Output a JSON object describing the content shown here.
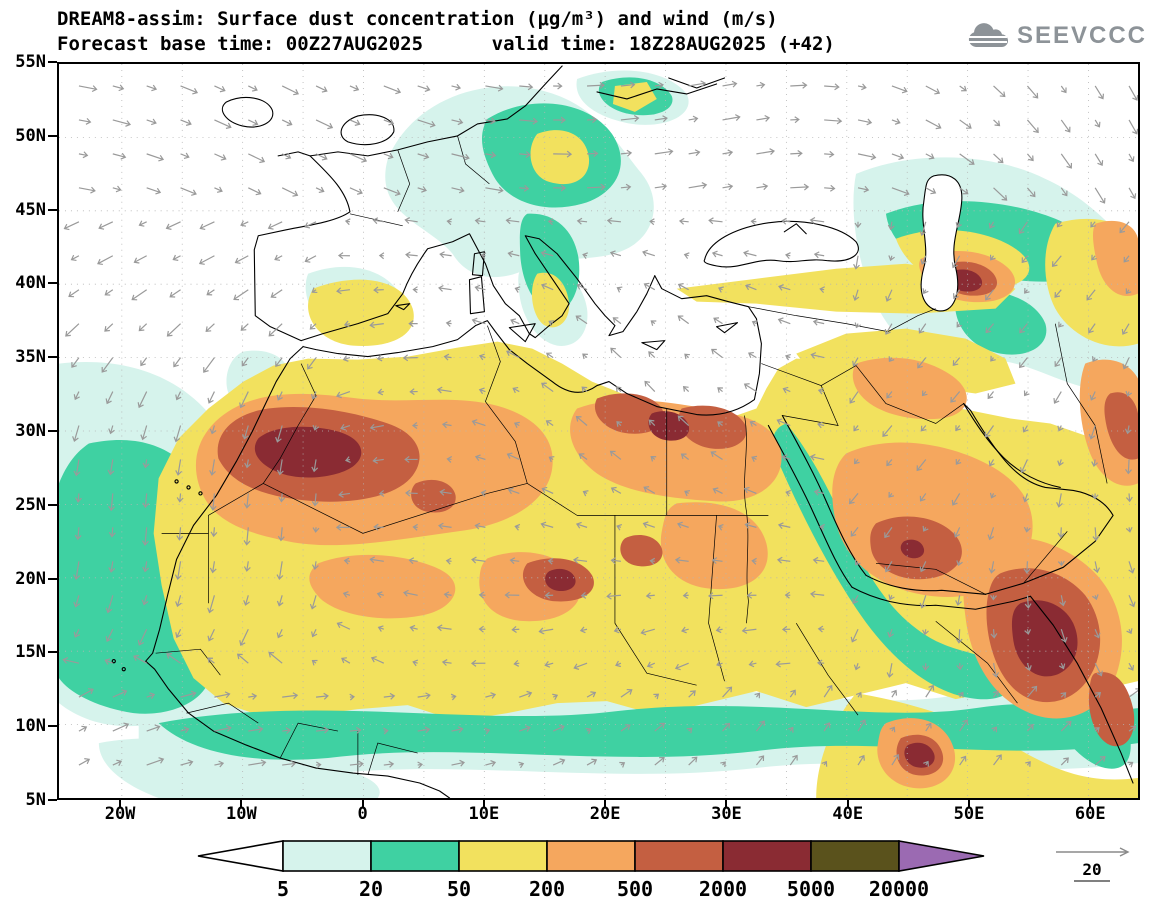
{
  "header": {
    "title": "DREAM8-assim: Surface dust concentration (μg/m³) and wind (m/s)",
    "subtitle": "Forecast base time: 00Z27AUG2025      valid time: 18Z28AUG2025 (+42)",
    "logo": "SEEVCCC"
  },
  "map": {
    "lat_ticks": [
      "55N",
      "50N",
      "45N",
      "40N",
      "35N",
      "30N",
      "25N",
      "20N",
      "15N",
      "10N",
      "5N"
    ],
    "lon_ticks": [
      "20W",
      "10W",
      "0",
      "10E",
      "20E",
      "30E",
      "40E",
      "50E",
      "60E"
    ]
  },
  "colorbar": {
    "labels": [
      "5",
      "20",
      "50",
      "200",
      "500",
      "2000",
      "5000",
      "20000"
    ],
    "colors": [
      "#ffffff",
      "#d6f3ec",
      "#3fd1a2",
      "#f2e15e",
      "#f5a75e",
      "#c45f41",
      "#8a2b33",
      "#5a521c",
      "#9b6ab2"
    ]
  },
  "wind_ref": {
    "value": "20"
  },
  "chart_data": {
    "type": "heatmap",
    "title": "DREAM8-assim: Surface dust concentration (μg/m³) and wind (m/s)",
    "forecast_base_time": "00Z27AUG2025",
    "valid_time": "18Z28AUG2025 (+42)",
    "lat_range": [
      "5N",
      "55N"
    ],
    "lon_range": [
      "20W",
      "60E"
    ],
    "concentration_levels_ugm3": [
      5,
      20,
      50,
      200,
      500,
      2000,
      5000,
      20000
    ],
    "legend_position": "bottom",
    "wind_reference_ms": 20,
    "notes": "Filled contours of surface dust concentration over North Africa, Europe and Middle East with grey wind vectors; highest concentrations (2000-5000) over Algeria, Egypt, Sudan, Caucasus and Horn of Africa"
  }
}
